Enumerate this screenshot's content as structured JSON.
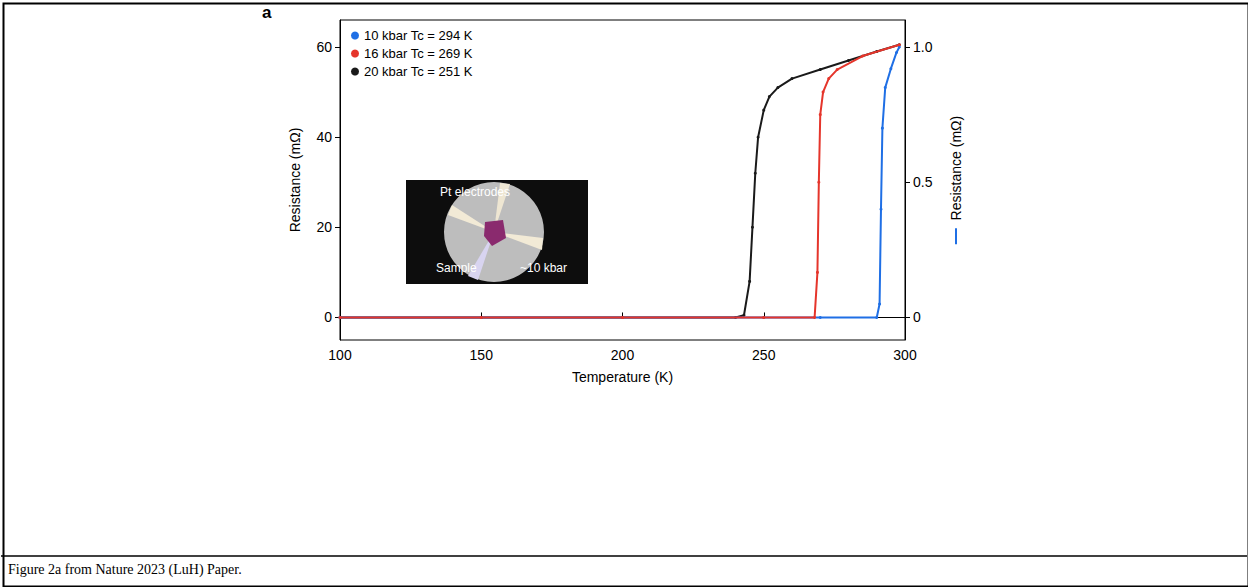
{
  "chart_data": {
    "type": "line",
    "panel_label": "a",
    "caption": "Figure 2a from Nature 2023 (LuH) Paper.",
    "x_label": "Temperature (K)",
    "y_label": "Resistance (mΩ)",
    "y2_label": "Resistance (mΩ)",
    "xlim": [
      100,
      300
    ],
    "xticks": [
      100,
      150,
      200,
      250,
      300
    ],
    "ylim": [
      -5,
      66
    ],
    "yticks": [
      0,
      20,
      40,
      60
    ],
    "y2lim": [
      -0.0833,
      1.1
    ],
    "y2ticks": [
      0,
      0.5,
      {
        "value": 1,
        "label": "1.0"
      }
    ],
    "grid": false,
    "legend": "upper left",
    "marker": "circle",
    "annotations": [
      "Pt electrodes",
      "Sample",
      "~10 kbar"
    ],
    "series": [
      {
        "name": "10 kbar Tc = 294 K",
        "color": "#1f6fe5",
        "axis": "y2",
        "x": [
          100,
          150,
          200,
          250,
          270,
          290,
          291,
          291.5,
          292,
          293,
          295,
          297,
          298
        ],
        "values": [
          0,
          0,
          0,
          0,
          0,
          0,
          0.05,
          0.4,
          0.7,
          0.85,
          0.92,
          0.98,
          1.0
        ]
      },
      {
        "name": "16 kbar Tc = 269 K",
        "color": "#e5352b",
        "x": [
          100,
          150,
          200,
          250,
          268,
          269,
          269.5,
          270,
          271,
          273,
          276,
          285,
          298
        ],
        "values": [
          0,
          0,
          0,
          0,
          0,
          10,
          30,
          45,
          50,
          53,
          55,
          58,
          60.5
        ]
      },
      {
        "name": "20 kbar Tc = 251 K",
        "color": "#1a1a1a",
        "x": [
          100,
          150,
          200,
          240,
          243,
          245,
          246,
          247,
          248,
          250,
          252,
          255,
          260,
          270,
          280,
          290,
          298
        ],
        "values": [
          0,
          0,
          0,
          0,
          0.5,
          8,
          20,
          32,
          40,
          46,
          49,
          51,
          53,
          55,
          57,
          59,
          60.5
        ]
      }
    ]
  }
}
